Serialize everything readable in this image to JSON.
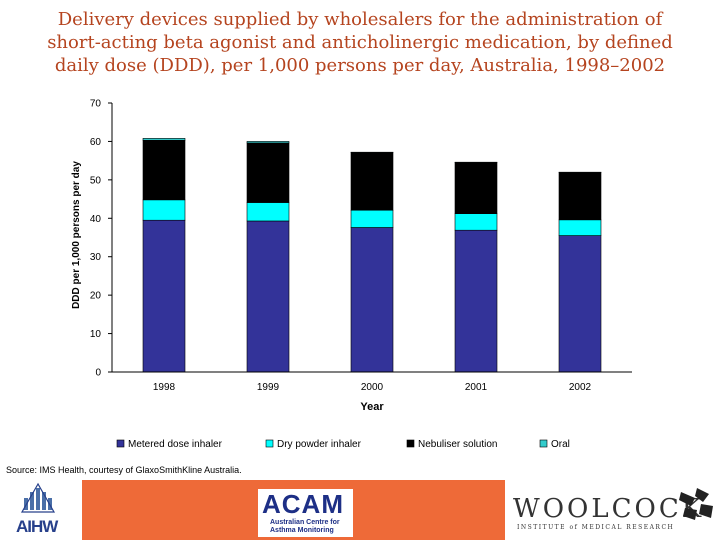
{
  "title_lines": [
    "Delivery devices supplied by wholesalers for the administration of",
    "short-acting beta agonist and anticholinergic medication, by defined",
    "daily dose (DDD), per 1,000 persons per day, Australia, 1998–2002"
  ],
  "source": "Source: IMS Health, courtesy of GlaxoSmithKline Australia.",
  "footer": {
    "aihw": "AIHW",
    "acam_title": "ACAM",
    "acam_sub": "Australian Centre for Asthma Monitoring",
    "woolcock_title": "WOOLCOCK",
    "woolcock_sub": "INSTITUTE of MEDICAL RESEARCH"
  },
  "chart_data": {
    "type": "bar",
    "stacked": true,
    "categories": [
      "1998",
      "1999",
      "2000",
      "2001",
      "2002"
    ],
    "series": [
      {
        "name": "Metered dose inhaler",
        "color": "#333399",
        "values": [
          39.5,
          39.3,
          37.6,
          36.9,
          35.5
        ]
      },
      {
        "name": "Dry powder inhaler",
        "color": "#00ffff",
        "values": [
          5.3,
          4.8,
          4.5,
          4.3,
          4.1
        ]
      },
      {
        "name": "Nebuliser solution",
        "color": "#000000",
        "values": [
          15.5,
          15.5,
          15.0,
          13.3,
          12.3
        ]
      },
      {
        "name": "Oral",
        "color": "#33cccc",
        "values": [
          0.5,
          0.4,
          0.1,
          0.1,
          0.1
        ]
      }
    ],
    "ylim": [
      0,
      70
    ],
    "yticks": [
      0,
      10,
      20,
      30,
      40,
      50,
      60,
      70
    ],
    "xlabel": "Year",
    "ylabel": "DDD per 1,000 persons per day",
    "legend": "bottom",
    "grid": false
  }
}
